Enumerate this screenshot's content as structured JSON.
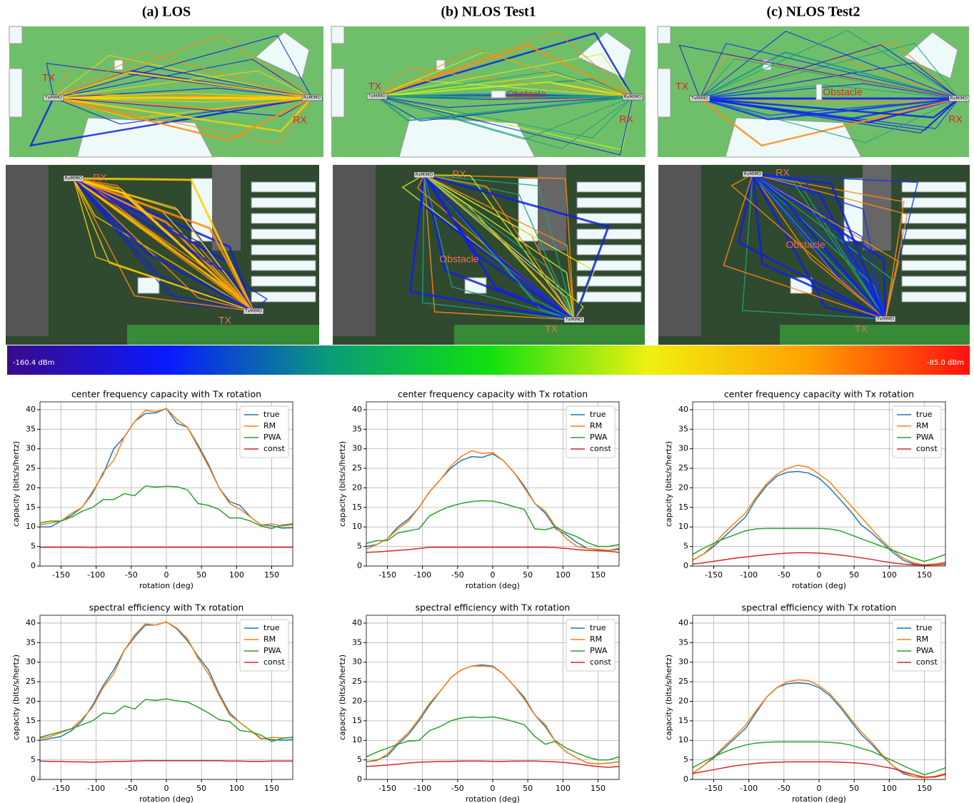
{
  "scenes": [
    {
      "title": "(a) LOS",
      "top": {
        "tx": "TX",
        "rx": "RX",
        "tx_box": "TxMIMO",
        "rx_box": "RxMIMO"
      },
      "view3d": {
        "tx": "TX",
        "rx": "RX",
        "tx_box": "TxMIMO",
        "rx_box": "RxMIMO"
      }
    },
    {
      "title": "(b) NLOS Test1",
      "top": {
        "tx": "TX",
        "rx": "RX",
        "obstacle": "Obstacle",
        "tx_box": "TxMIMO",
        "rx_box": "RxMIMO"
      },
      "view3d": {
        "tx": "TX",
        "rx": "RX",
        "obstacle": "Obstacle",
        "tx_box": "TxMIMO",
        "rx_box": "RxMIMO"
      }
    },
    {
      "title": "(c) NLOS Test2",
      "top": {
        "tx": "TX",
        "rx": "RX",
        "obstacle": "Obstacle",
        "tx_box": "TxMIMO",
        "rx_box": "RxMIMO"
      },
      "view3d": {
        "tx": "TX",
        "rx": "RX",
        "obstacle": "Obstacle",
        "tx_box": "TxMIMO",
        "rx_box": "RxMIMO"
      }
    }
  ],
  "colorbar": {
    "min_label": "-160.4 dBm",
    "max_label": "-85.0 dBm",
    "colors": [
      "#3a0a8a",
      "#0a1aff",
      "#0a9a7a",
      "#10e010",
      "#f0f010",
      "#ffa000",
      "#ff1010"
    ]
  },
  "chart_data": [
    {
      "type": "line",
      "title": "center frequency capacity with Tx rotation",
      "xlabel": "rotation (deg)",
      "ylabel": "capacity (bits/s/hertz)",
      "xlim": [
        -180,
        180
      ],
      "ylim": [
        0,
        42
      ],
      "xticks": [
        -150,
        -100,
        -50,
        0,
        50,
        100,
        150
      ],
      "yticks": [
        0,
        5,
        10,
        15,
        20,
        25,
        30,
        35,
        40
      ],
      "grid": true,
      "legend": "upper right",
      "x": [
        -180,
        -165,
        -150,
        -135,
        -120,
        -105,
        -90,
        -75,
        -60,
        -45,
        -30,
        -15,
        0,
        15,
        30,
        45,
        60,
        75,
        90,
        105,
        120,
        135,
        150,
        165,
        180
      ],
      "series": [
        {
          "name": "true",
          "color": "#1f77b4",
          "values": [
            10,
            10,
            11.5,
            13,
            15,
            19,
            23.5,
            30,
            33,
            37,
            39,
            39.2,
            40.3,
            36.5,
            35.5,
            31,
            26,
            20,
            16.5,
            15.5,
            12.5,
            10.5,
            10.3,
            9.7,
            9.8
          ]
        },
        {
          "name": "RM",
          "color": "#ff7f0e",
          "values": [
            10.5,
            11,
            11.5,
            13.5,
            15,
            18.5,
            24,
            27,
            33,
            37,
            39.8,
            39.5,
            40.3,
            37.5,
            35.5,
            30.5,
            25.5,
            20,
            16,
            14.5,
            12.5,
            10.5,
            10.8,
            10.2,
            10.6
          ]
        },
        {
          "name": "PWA",
          "color": "#2ca02c",
          "values": [
            11,
            11.5,
            11.5,
            12.5,
            14,
            15,
            17,
            17,
            18.5,
            18,
            20.5,
            20.2,
            20.4,
            20.3,
            19.5,
            16,
            15.5,
            14.5,
            12.3,
            12.3,
            11.5,
            10.2,
            9.6,
            10.5,
            10.8
          ]
        },
        {
          "name": "const",
          "color": "#d62728",
          "values": [
            4.8,
            4.8,
            4.8,
            4.8,
            4.8,
            4.7,
            4.8,
            4.8,
            4.8,
            4.8,
            4.8,
            4.8,
            4.8,
            4.8,
            4.8,
            4.8,
            4.8,
            4.8,
            4.8,
            4.8,
            4.8,
            4.8,
            4.8,
            4.8,
            4.8
          ]
        }
      ]
    },
    {
      "type": "line",
      "title": "center frequency capacity with Tx rotation",
      "xlabel": "rotation (deg)",
      "ylabel": "capacity (bits/s/hertz)",
      "xlim": [
        -180,
        180
      ],
      "ylim": [
        0,
        42
      ],
      "xticks": [
        -150,
        -100,
        -50,
        0,
        50,
        100,
        150
      ],
      "yticks": [
        0,
        5,
        10,
        15,
        20,
        25,
        30,
        35,
        40
      ],
      "grid": true,
      "legend": "upper right",
      "x": [
        -180,
        -165,
        -150,
        -135,
        -120,
        -105,
        -90,
        -75,
        -60,
        -45,
        -30,
        -15,
        0,
        15,
        30,
        45,
        60,
        75,
        90,
        105,
        120,
        135,
        150,
        165,
        180
      ],
      "series": [
        {
          "name": "true",
          "color": "#1f77b4",
          "values": [
            5,
            5.5,
            7,
            10,
            12,
            15,
            19,
            22,
            25,
            27,
            28,
            27.8,
            28.7,
            27,
            24,
            20.5,
            16,
            13.5,
            9.5,
            8,
            6,
            4.5,
            4.2,
            4,
            4.5
          ]
        },
        {
          "name": "RM",
          "color": "#ff7f0e",
          "values": [
            4.3,
            5.5,
            7,
            9.5,
            11.5,
            15,
            19,
            22,
            25.5,
            28,
            29.5,
            28.8,
            29,
            27,
            24,
            20,
            16,
            14,
            10,
            7,
            5,
            4.5,
            4.3,
            4,
            4.2
          ]
        },
        {
          "name": "PWA",
          "color": "#2ca02c",
          "values": [
            5.8,
            6.5,
            6.5,
            8.5,
            9,
            9.5,
            12.8,
            14.2,
            15.3,
            16,
            16.5,
            16.7,
            16.6,
            16,
            15.2,
            14.5,
            9.5,
            9.3,
            10,
            8.5,
            7.5,
            6,
            5,
            5,
            5.5
          ]
        },
        {
          "name": "const",
          "color": "#d62728",
          "values": [
            3.5,
            3.6,
            3.8,
            4,
            4.2,
            4.5,
            4.8,
            4.8,
            4.8,
            4.8,
            4.8,
            4.8,
            4.8,
            4.8,
            4.8,
            4.8,
            4.8,
            4.8,
            4.7,
            4.5,
            4.2,
            4,
            3.9,
            3.8,
            3.5
          ]
        }
      ]
    },
    {
      "type": "line",
      "title": "center frequency capacity with Tx rotation",
      "xlabel": "rotation (deg)",
      "ylabel": "capacity (bits/s/hertz)",
      "xlim": [
        -180,
        180
      ],
      "ylim": [
        0,
        42
      ],
      "xticks": [
        -150,
        -100,
        -50,
        0,
        50,
        100,
        150
      ],
      "yticks": [
        0,
        5,
        10,
        15,
        20,
        25,
        30,
        35,
        40
      ],
      "grid": true,
      "legend": "upper right",
      "x": [
        -180,
        -165,
        -150,
        -135,
        -120,
        -105,
        -90,
        -75,
        -60,
        -45,
        -30,
        -15,
        0,
        15,
        30,
        45,
        60,
        75,
        90,
        105,
        120,
        135,
        150,
        165,
        180
      ],
      "series": [
        {
          "name": "true",
          "color": "#1f77b4",
          "values": [
            1.5,
            3,
            5,
            7.5,
            10,
            12.5,
            17,
            20.5,
            23,
            24,
            24.2,
            23.8,
            22.5,
            20,
            17,
            14,
            10.5,
            8.5,
            6,
            3.5,
            1.5,
            0.5,
            0.3,
            0.5,
            0.8
          ]
        },
        {
          "name": "RM",
          "color": "#ff7f0e",
          "values": [
            1.5,
            3,
            5.5,
            8.5,
            11,
            13.5,
            17.5,
            21,
            23.5,
            25,
            25.8,
            25.3,
            23.5,
            21.5,
            18.5,
            15.5,
            12.5,
            9.5,
            6.5,
            4,
            2,
            0.8,
            0.3,
            0.5,
            1
          ]
        },
        {
          "name": "PWA",
          "color": "#2ca02c",
          "values": [
            3,
            4.5,
            5.8,
            7,
            8,
            9,
            9.5,
            9.6,
            9.6,
            9.6,
            9.6,
            9.6,
            9.6,
            9.5,
            9,
            8,
            7,
            6,
            5,
            4,
            3,
            2,
            1.2,
            2,
            3
          ]
        },
        {
          "name": "const",
          "color": "#d62728",
          "values": [
            0.5,
            0.8,
            1.2,
            1.6,
            2,
            2.3,
            2.6,
            2.9,
            3.1,
            3.3,
            3.4,
            3.4,
            3.3,
            3.1,
            2.8,
            2.5,
            2.1,
            1.7,
            1.2,
            0.8,
            0.5,
            0.3,
            0.2,
            0.3,
            0.4
          ]
        }
      ]
    },
    {
      "type": "line",
      "title": "spectral efficiency with Tx rotation",
      "xlabel": "rotation (deg)",
      "ylabel": "capacity (bits/s/hertz)",
      "xlim": [
        -180,
        180
      ],
      "ylim": [
        0,
        42
      ],
      "xticks": [
        -150,
        -100,
        -50,
        0,
        50,
        100,
        150
      ],
      "yticks": [
        0,
        5,
        10,
        15,
        20,
        25,
        30,
        35,
        40
      ],
      "grid": true,
      "legend": "upper right",
      "x": [
        -180,
        -165,
        -150,
        -135,
        -120,
        -105,
        -90,
        -75,
        -60,
        -45,
        -30,
        -15,
        0,
        15,
        30,
        45,
        60,
        75,
        90,
        105,
        120,
        135,
        150,
        165,
        180
      ],
      "series": [
        {
          "name": "true",
          "color": "#1f77b4",
          "values": [
            10,
            10.5,
            11,
            12.5,
            15,
            19,
            24,
            28,
            33,
            36.5,
            39.5,
            39.5,
            40.3,
            38.5,
            35.5,
            31.5,
            28,
            22,
            17,
            14.5,
            12.5,
            10.5,
            10.2,
            10,
            10.2
          ]
        },
        {
          "name": "RM",
          "color": "#ff7f0e",
          "values": [
            10.5,
            11,
            12,
            13,
            15.5,
            18.5,
            23.5,
            27,
            33,
            37,
            39.8,
            39.5,
            40.3,
            38.7,
            36,
            31,
            27,
            21.5,
            16.5,
            14.5,
            12.5,
            10.3,
            10.8,
            10.6,
            10.8
          ]
        },
        {
          "name": "PWA",
          "color": "#2ca02c",
          "values": [
            10.8,
            11.5,
            12.2,
            13,
            14,
            15,
            17,
            16.8,
            18.8,
            18,
            20.5,
            20.2,
            20.6,
            20.1,
            19.8,
            18.5,
            17,
            15.3,
            14.8,
            12.5,
            12.2,
            11.3,
            9.7,
            10.5,
            10.8
          ]
        },
        {
          "name": "const",
          "color": "#d62728",
          "values": [
            4.7,
            4.6,
            4.6,
            4.5,
            4.5,
            4.4,
            4.5,
            4.6,
            4.6,
            4.7,
            4.8,
            4.8,
            4.8,
            4.8,
            4.8,
            4.8,
            4.8,
            4.8,
            4.7,
            4.7,
            4.6,
            4.6,
            4.7,
            4.7,
            4.7
          ]
        }
      ]
    },
    {
      "type": "line",
      "title": "spectral efficiency with Tx rotation",
      "xlabel": "rotation (deg)",
      "ylabel": "capacity (bits/s/hertz)",
      "xlim": [
        -180,
        180
      ],
      "ylim": [
        0,
        42
      ],
      "xticks": [
        -150,
        -100,
        -50,
        0,
        50,
        100,
        150
      ],
      "yticks": [
        0,
        5,
        10,
        15,
        20,
        25,
        30,
        35,
        40
      ],
      "grid": true,
      "legend": "upper right",
      "x": [
        -180,
        -165,
        -150,
        -135,
        -120,
        -105,
        -90,
        -75,
        -60,
        -45,
        -30,
        -15,
        0,
        15,
        30,
        45,
        60,
        75,
        90,
        105,
        120,
        135,
        150,
        165,
        180
      ],
      "series": [
        {
          "name": "true",
          "color": "#1f77b4",
          "values": [
            4.5,
            5,
            6,
            9,
            11.5,
            15,
            19,
            22.5,
            26,
            28,
            29,
            29.3,
            29,
            27,
            24,
            21,
            16.5,
            13.5,
            9.5,
            7,
            5.5,
            4.2,
            4,
            4.2,
            4.5
          ]
        },
        {
          "name": "RM",
          "color": "#ff7f0e",
          "values": [
            4.5,
            4.8,
            6.5,
            9.5,
            12,
            15.5,
            19.5,
            22.5,
            26,
            28,
            29,
            29,
            28.8,
            27,
            24,
            20.5,
            16.5,
            14,
            9.5,
            7,
            5.5,
            4.2,
            4,
            4.2,
            4.5
          ]
        },
        {
          "name": "PWA",
          "color": "#2ca02c",
          "values": [
            5.8,
            7,
            8,
            9,
            9.8,
            10,
            12.5,
            13.5,
            15,
            15.7,
            16,
            15.8,
            16,
            15.5,
            14.8,
            14,
            11,
            9,
            9.8,
            8,
            6.8,
            5.7,
            5,
            5,
            5.8
          ]
        },
        {
          "name": "const",
          "color": "#d62728",
          "values": [
            3.3,
            3.5,
            3.7,
            3.9,
            4.2,
            4.4,
            4.5,
            4.6,
            4.6,
            4.7,
            4.7,
            4.7,
            4.6,
            4.6,
            4.7,
            4.7,
            4.7,
            4.6,
            4.5,
            4.3,
            4,
            3.6,
            3.3,
            3.1,
            3.3
          ]
        }
      ]
    },
    {
      "type": "line",
      "title": "spectral efficiency with Tx rotation",
      "xlabel": "rotation (deg)",
      "ylabel": "capacity (bits/s/hertz)",
      "xlim": [
        -180,
        180
      ],
      "ylim": [
        0,
        42
      ],
      "xticks": [
        -150,
        -100,
        -50,
        0,
        50,
        100,
        150
      ],
      "yticks": [
        0,
        5,
        10,
        15,
        20,
        25,
        30,
        35,
        40
      ],
      "grid": true,
      "legend": "upper right",
      "x": [
        -180,
        -165,
        -150,
        -135,
        -120,
        -105,
        -90,
        -75,
        -60,
        -45,
        -30,
        -15,
        0,
        15,
        30,
        45,
        60,
        75,
        90,
        105,
        120,
        135,
        150,
        165,
        180
      ],
      "series": [
        {
          "name": "true",
          "color": "#1f77b4",
          "values": [
            1.5,
            3.5,
            5.5,
            8,
            10.5,
            13,
            17,
            21,
            23.5,
            24.5,
            24.7,
            24.5,
            23.5,
            21.5,
            18.5,
            15,
            11.5,
            9,
            6,
            3.5,
            1.5,
            0.7,
            0.5,
            0.8,
            1.3
          ]
        },
        {
          "name": "RM",
          "color": "#ff7f0e",
          "values": [
            1.5,
            3.5,
            5.8,
            8.5,
            11,
            13.8,
            17.5,
            21,
            23.5,
            25,
            25.5,
            25.3,
            24,
            22,
            19,
            15.5,
            12.2,
            9.5,
            6.3,
            3.5,
            1.8,
            0.7,
            0.4,
            0.8,
            1.5
          ]
        },
        {
          "name": "PWA",
          "color": "#2ca02c",
          "values": [
            3,
            4.5,
            5.8,
            7,
            8,
            8.8,
            9.3,
            9.5,
            9.6,
            9.6,
            9.6,
            9.6,
            9.6,
            9.5,
            9.3,
            8.8,
            8,
            7.2,
            6,
            4.8,
            3.5,
            2.3,
            1.2,
            2,
            3
          ]
        },
        {
          "name": "const",
          "color": "#d62728",
          "values": [
            1.5,
            2,
            2.5,
            3,
            3.5,
            3.8,
            4.1,
            4.3,
            4.4,
            4.5,
            4.5,
            4.5,
            4.5,
            4.5,
            4.4,
            4.3,
            4.1,
            3.8,
            3.3,
            2.8,
            2,
            1.2,
            0.6,
            0.6,
            1.3
          ]
        }
      ]
    }
  ]
}
